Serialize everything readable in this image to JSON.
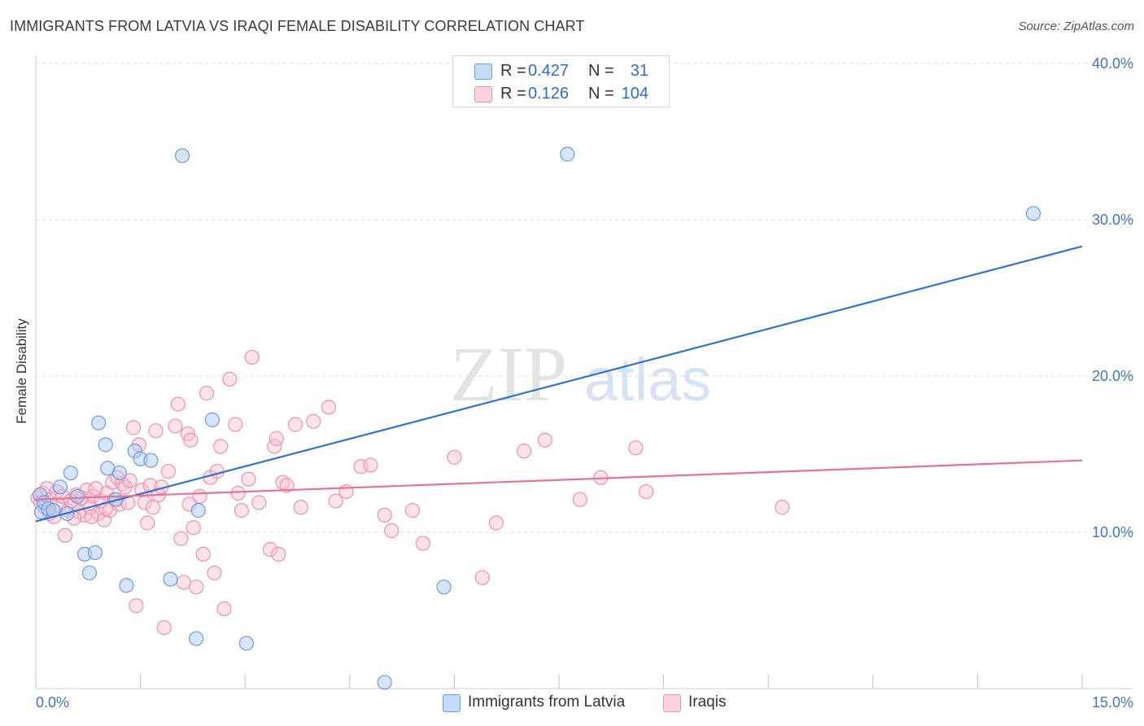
{
  "title": "IMMIGRANTS FROM LATVIA VS IRAQI FEMALE DISABILITY CORRELATION CHART",
  "source": "Source: ZipAtlas.com",
  "watermark": {
    "zip": "ZIP",
    "atlas": "atlas"
  },
  "colors": {
    "blue_fill": "#aecbf2",
    "blue_stroke": "#6b9be0",
    "blue_line": "#2e72d2",
    "pink_fill": "#f7c0d0",
    "pink_stroke": "#ee8fae",
    "pink_line": "#e8709a",
    "tick_text": "#4472c4",
    "grid": "#dcdcdc"
  },
  "legend": {
    "rows": [
      {
        "r_label": "R =",
        "r_value": "0.427",
        "n_label": "N =",
        "n_value": "31"
      },
      {
        "r_label": "R =",
        "r_value": "0.126",
        "n_label": "N =",
        "n_value": "104"
      }
    ]
  },
  "bottom_legend": [
    {
      "label": "Immigrants from Latvia"
    },
    {
      "label": "Iraqis"
    }
  ],
  "chart_data": {
    "type": "scatter",
    "title": "IMMIGRANTS FROM LATVIA VS IRAQI FEMALE DISABILITY CORRELATION CHART",
    "xlabel": "",
    "ylabel": "Female Disability",
    "xlim": [
      0,
      15
    ],
    "ylim": [
      0,
      40
    ],
    "x_tick_labels": [
      "0.0%",
      "15.0%"
    ],
    "y_ticks": [
      10,
      20,
      30,
      40
    ],
    "y_tick_labels": [
      "10.0%",
      "20.0%",
      "30.0%",
      "40.0%"
    ],
    "grid": true,
    "legend_position": "top-center",
    "series": [
      {
        "name": "Immigrants from Latvia",
        "R": 0.427,
        "N": 31,
        "trend": {
          "x": [
            0,
            15
          ],
          "y": [
            10.7,
            28.3
          ]
        },
        "points": [
          [
            0.06,
            12.4
          ],
          [
            0.08,
            11.3
          ],
          [
            0.12,
            11.9
          ],
          [
            0.18,
            11.5
          ],
          [
            0.35,
            12.9
          ],
          [
            0.5,
            13.8
          ],
          [
            0.6,
            12.3
          ],
          [
            0.7,
            8.6
          ],
          [
            0.77,
            7.4
          ],
          [
            0.85,
            8.7
          ],
          [
            0.9,
            17.0
          ],
          [
            1.0,
            15.6
          ],
          [
            1.03,
            14.1
          ],
          [
            1.15,
            12.1
          ],
          [
            1.2,
            13.8
          ],
          [
            1.3,
            6.6
          ],
          [
            1.42,
            15.2
          ],
          [
            1.5,
            14.7
          ],
          [
            1.65,
            14.6
          ],
          [
            1.93,
            7.0
          ],
          [
            2.1,
            34.1
          ],
          [
            2.3,
            3.2
          ],
          [
            2.33,
            11.4
          ],
          [
            2.53,
            17.2
          ],
          [
            3.02,
            2.9
          ],
          [
            5.0,
            0.4
          ],
          [
            5.85,
            6.5
          ],
          [
            7.62,
            34.2
          ],
          [
            14.3,
            30.4
          ],
          [
            0.25,
            11.4
          ],
          [
            0.45,
            11.2
          ]
        ]
      },
      {
        "name": "Iraqis",
        "R": 0.126,
        "N": 104,
        "trend": {
          "x": [
            0,
            15
          ],
          "y": [
            12.1,
            14.6
          ]
        },
        "points": [
          [
            0.03,
            12.2
          ],
          [
            0.07,
            11.9
          ],
          [
            0.1,
            12.5
          ],
          [
            0.13,
            11.6
          ],
          [
            0.16,
            12.8
          ],
          [
            0.2,
            11.2
          ],
          [
            0.22,
            12.1
          ],
          [
            0.26,
            11.0
          ],
          [
            0.3,
            12.6
          ],
          [
            0.33,
            11.7
          ],
          [
            0.38,
            12.3
          ],
          [
            0.42,
            9.8
          ],
          [
            0.46,
            11.4
          ],
          [
            0.5,
            12.0
          ],
          [
            0.55,
            11.8
          ],
          [
            0.58,
            12.4
          ],
          [
            0.62,
            11.3
          ],
          [
            0.66,
            12.2
          ],
          [
            0.7,
            11.1
          ],
          [
            0.73,
            12.7
          ],
          [
            0.78,
            11.6
          ],
          [
            0.82,
            12.3
          ],
          [
            0.86,
            12.8
          ],
          [
            0.9,
            11.2
          ],
          [
            0.94,
            12.0
          ],
          [
            0.98,
            10.8
          ],
          [
            1.02,
            12.5
          ],
          [
            1.06,
            11.4
          ],
          [
            1.1,
            13.2
          ],
          [
            1.13,
            12.1
          ],
          [
            1.17,
            13.5
          ],
          [
            1.2,
            11.8
          ],
          [
            1.24,
            13.1
          ],
          [
            1.28,
            12.9
          ],
          [
            1.32,
            11.9
          ],
          [
            1.35,
            13.3
          ],
          [
            1.4,
            16.7
          ],
          [
            1.44,
            5.3
          ],
          [
            1.48,
            15.6
          ],
          [
            1.52,
            12.7
          ],
          [
            1.56,
            11.9
          ],
          [
            1.6,
            10.6
          ],
          [
            1.64,
            13.0
          ],
          [
            1.68,
            11.6
          ],
          [
            1.72,
            16.5
          ],
          [
            1.76,
            12.4
          ],
          [
            1.8,
            12.9
          ],
          [
            1.84,
            3.9
          ],
          [
            1.9,
            13.9
          ],
          [
            2.0,
            16.8
          ],
          [
            2.04,
            18.2
          ],
          [
            2.08,
            9.6
          ],
          [
            2.12,
            6.8
          ],
          [
            2.18,
            16.3
          ],
          [
            2.22,
            15.9
          ],
          [
            2.26,
            10.3
          ],
          [
            2.3,
            6.5
          ],
          [
            2.35,
            12.3
          ],
          [
            2.4,
            8.6
          ],
          [
            2.45,
            18.9
          ],
          [
            2.5,
            13.5
          ],
          [
            2.56,
            7.4
          ],
          [
            2.6,
            13.9
          ],
          [
            2.65,
            15.5
          ],
          [
            2.7,
            5.1
          ],
          [
            2.78,
            19.8
          ],
          [
            2.86,
            16.9
          ],
          [
            2.95,
            11.4
          ],
          [
            3.05,
            13.4
          ],
          [
            3.1,
            21.2
          ],
          [
            3.2,
            11.9
          ],
          [
            3.36,
            8.9
          ],
          [
            3.42,
            15.5
          ],
          [
            3.48,
            8.6
          ],
          [
            3.54,
            13.2
          ],
          [
            3.6,
            13.0
          ],
          [
            3.72,
            16.9
          ],
          [
            3.8,
            11.6
          ],
          [
            3.98,
            17.1
          ],
          [
            4.2,
            18.0
          ],
          [
            4.3,
            12.0
          ],
          [
            4.45,
            12.6
          ],
          [
            4.66,
            14.2
          ],
          [
            4.8,
            14.3
          ],
          [
            5.0,
            11.1
          ],
          [
            5.1,
            10.1
          ],
          [
            5.4,
            11.4
          ],
          [
            5.55,
            9.3
          ],
          [
            6.0,
            14.8
          ],
          [
            6.4,
            7.1
          ],
          [
            6.6,
            10.6
          ],
          [
            7.0,
            15.2
          ],
          [
            7.3,
            15.9
          ],
          [
            7.8,
            12.1
          ],
          [
            8.1,
            13.5
          ],
          [
            8.6,
            15.4
          ],
          [
            8.75,
            12.6
          ],
          [
            10.7,
            11.6
          ],
          [
            3.45,
            16.0
          ],
          [
            2.2,
            11.8
          ],
          [
            1.0,
            11.5
          ],
          [
            0.55,
            10.9
          ],
          [
            0.8,
            11.0
          ],
          [
            2.9,
            12.5
          ]
        ]
      }
    ]
  }
}
